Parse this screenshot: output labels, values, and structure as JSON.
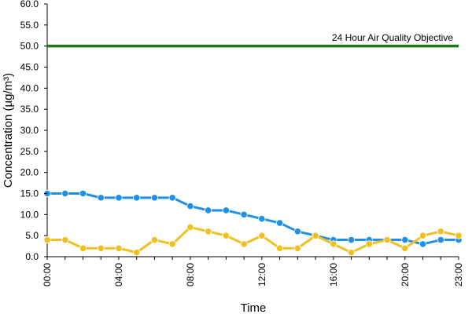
{
  "chart_data": {
    "type": "line",
    "title": "",
    "xlabel": "Time",
    "ylabel": "Concentration (µg/m³)",
    "ylim": [
      0,
      60
    ],
    "y_ticks": [
      "0.0",
      "5.0",
      "10.0",
      "15.0",
      "20.0",
      "25.0",
      "30.0",
      "35.0",
      "40.0",
      "45.0",
      "50.0",
      "55.0",
      "60.0"
    ],
    "x": [
      "00:00",
      "01:00",
      "02:00",
      "03:00",
      "04:00",
      "05:00",
      "06:00",
      "07:00",
      "08:00",
      "09:00",
      "10:00",
      "11:00",
      "12:00",
      "13:00",
      "14:00",
      "15:00",
      "16:00",
      "17:00",
      "18:00",
      "19:00",
      "20:00",
      "21:00",
      "22:00",
      "23:00"
    ],
    "x_tick_labels": [
      "00:00",
      "04:00",
      "08:00",
      "12:00",
      "16:00",
      "20:00",
      "23:00"
    ],
    "grid": false,
    "series": [
      {
        "color": "#1e90e8",
        "values": [
          15,
          15,
          15,
          14,
          14,
          14,
          14,
          14,
          12,
          11,
          11,
          10,
          9,
          8,
          6,
          5,
          4,
          4,
          4,
          4,
          4,
          3,
          4,
          4
        ]
      },
      {
        "color": "#f0c020",
        "values": [
          4,
          4,
          2,
          2,
          2,
          1,
          4,
          3,
          7,
          6,
          5,
          3,
          5,
          2,
          2,
          5,
          3,
          1,
          3,
          4,
          2,
          5,
          6,
          5
        ]
      }
    ],
    "reference_line": {
      "label": "24 Hour Air Quality Objective",
      "value": 50,
      "color": "#1a7a1a"
    }
  }
}
